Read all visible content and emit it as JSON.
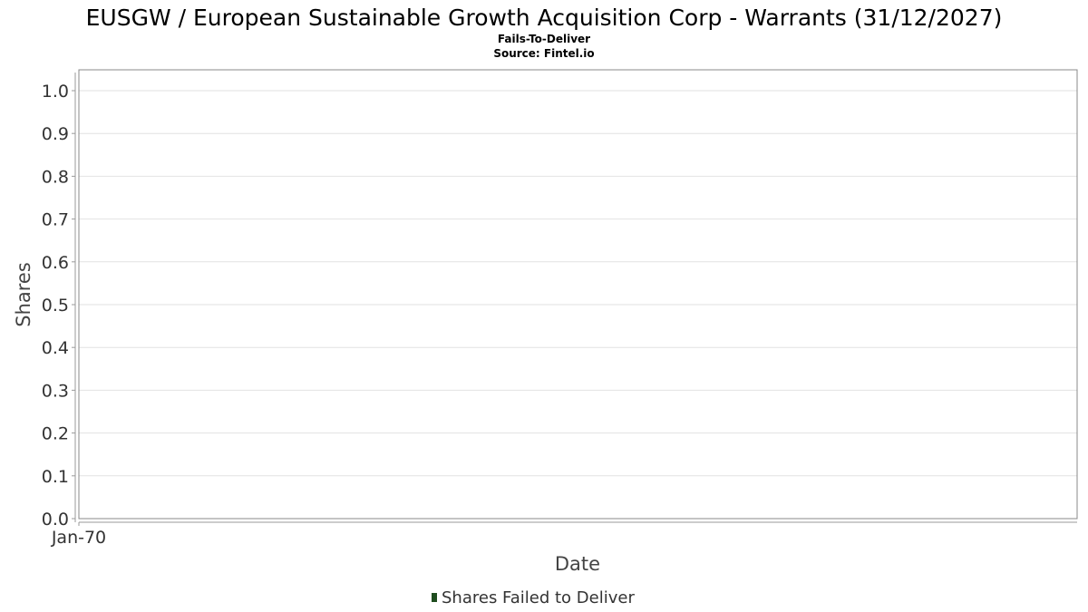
{
  "chart_data": {
    "type": "bar",
    "title": "EUSGW / European Sustainable Growth Acquisition Corp - Warrants (31/12/2027)",
    "subtitles": [
      "Fails-To-Deliver",
      "Source: Fintel.io"
    ],
    "xlabel": "Date",
    "ylabel": "Shares",
    "ylim": [
      0,
      1.0
    ],
    "y_ticks": [
      "0.0",
      "0.1",
      "0.2",
      "0.3",
      "0.4",
      "0.5",
      "0.6",
      "0.7",
      "0.8",
      "0.9",
      "1.0"
    ],
    "x_ticks": [
      "Jan-70"
    ],
    "grid": true,
    "legend_position": "bottom",
    "series": [
      {
        "name": "Shares Failed to Deliver",
        "color": "#1f4d1f",
        "values": []
      }
    ]
  }
}
